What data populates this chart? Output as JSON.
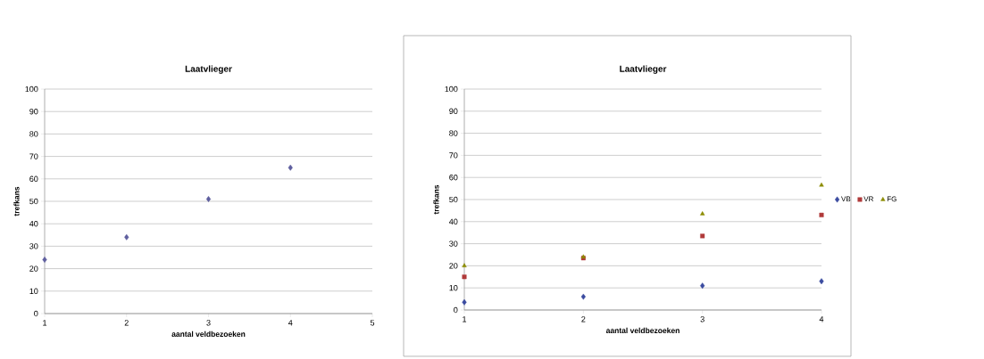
{
  "chart_data": [
    {
      "type": "scatter",
      "title": "Laatvlieger",
      "xlabel": "aantal veldbezoeken",
      "ylabel": "trefkans",
      "x": [
        1,
        2,
        3,
        4
      ],
      "values": [
        24,
        34,
        51,
        65
      ],
      "color": "#5f5f9f",
      "marker": "diamond",
      "xlim": [
        1,
        5
      ],
      "xticks": [
        1,
        2,
        3,
        4,
        5
      ],
      "ylim": [
        0,
        100
      ],
      "yticks": [
        0,
        10,
        20,
        30,
        40,
        50,
        60,
        70,
        80,
        90,
        100
      ],
      "grid": "y",
      "legend": false
    },
    {
      "type": "scatter",
      "title": "Laatvlieger",
      "xlabel": "aantal veldbezoeken",
      "ylabel": "trefkans",
      "x": [
        1,
        2,
        3,
        4
      ],
      "xlim": [
        1,
        4
      ],
      "xticks": [
        1,
        2,
        3,
        4
      ],
      "ylim": [
        0,
        100
      ],
      "yticks": [
        0,
        10,
        20,
        30,
        40,
        50,
        60,
        70,
        80,
        90,
        100
      ],
      "grid": "y",
      "legend": "right",
      "series": [
        {
          "name": "VB",
          "color": "#3b4ba0",
          "marker": "diamond",
          "values": [
            3.5,
            6,
            11,
            13
          ]
        },
        {
          "name": "VR",
          "color": "#b03a3a",
          "marker": "square",
          "values": [
            15,
            23.5,
            33.5,
            43
          ]
        },
        {
          "name": "FG",
          "color": "#8c8c00",
          "marker": "triangle",
          "values": [
            20,
            24,
            43.5,
            56.5
          ]
        }
      ]
    }
  ]
}
